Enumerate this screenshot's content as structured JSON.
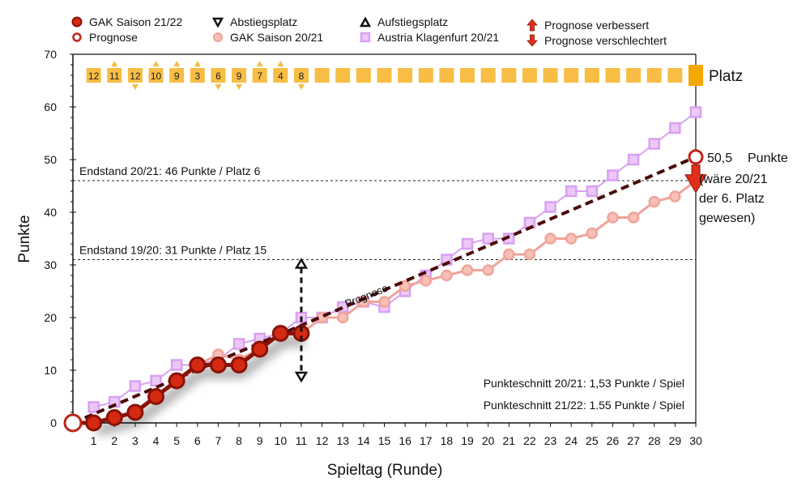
{
  "legend": [
    {
      "label": "GAK Saison 21/22",
      "icon": "filled-red-circle"
    },
    {
      "label": "Prognose",
      "icon": "hollow-red-circle"
    },
    {
      "label": "Abstiegsplatz",
      "icon": "down-triangle"
    },
    {
      "label": "GAK Saison 20/21",
      "icon": "light-red-circle"
    },
    {
      "label": "Aufstiegsplatz",
      "icon": "up-triangle"
    },
    {
      "label": "Austria Klagenfurt 20/21",
      "icon": "violet-square"
    },
    {
      "label": "Prognose verbessert",
      "icon": "red-up-arrow"
    },
    {
      "label": "Prognose verschlechtert",
      "icon": "red-down-arrow"
    }
  ],
  "colors": {
    "gak2122": "#d42a12",
    "gak2122_edge": "#8a1206",
    "gak2021": "#f0a49a",
    "klagenfurt": "#d9a0f0",
    "prognose_line": "#4a0a0a",
    "platz": "#f7bd45",
    "platz_current": "#f5a800",
    "arrow_red": "#e0301a"
  },
  "chart_data": {
    "type": "line",
    "xlabel": "Spieltag (Runde)",
    "ylabel": "Punkte",
    "xlim": [
      0,
      30
    ],
    "ylim": [
      0,
      70
    ],
    "x_ticks": [
      1,
      2,
      3,
      4,
      5,
      6,
      7,
      8,
      9,
      10,
      11,
      12,
      13,
      14,
      15,
      16,
      17,
      18,
      19,
      20,
      21,
      22,
      23,
      24,
      25,
      26,
      27,
      28,
      29,
      30
    ],
    "y_ticks": [
      0,
      10,
      20,
      30,
      40,
      50,
      60,
      70
    ],
    "series": [
      {
        "name": "Austria Klagenfurt 20/21",
        "x": [
          1,
          2,
          3,
          4,
          5,
          6,
          7,
          8,
          9,
          10,
          11,
          12,
          13,
          14,
          15,
          16,
          17,
          18,
          19,
          20,
          21,
          22,
          23,
          24,
          25,
          26,
          27,
          28,
          29,
          30
        ],
        "values": [
          3,
          4,
          7,
          8,
          11,
          11,
          12,
          15,
          16,
          17,
          20,
          20,
          22,
          23,
          22,
          25,
          28,
          31,
          34,
          35,
          35,
          38,
          41,
          44,
          44,
          47,
          50,
          53,
          56,
          59
        ]
      },
      {
        "name": "GAK Saison 20/21",
        "x": [
          1,
          2,
          3,
          4,
          5,
          6,
          7,
          8,
          9,
          10,
          11,
          12,
          13,
          14,
          15,
          16,
          17,
          18,
          19,
          20,
          21,
          22,
          23,
          24,
          25,
          26,
          27,
          28,
          29,
          30
        ],
        "values": [
          0,
          1,
          2,
          5,
          8,
          11,
          13,
          12,
          14,
          17,
          17,
          20,
          20,
          23,
          23,
          26,
          27,
          28,
          29,
          29,
          32,
          32,
          35,
          35,
          36,
          39,
          39,
          42,
          43,
          46
        ]
      },
      {
        "name": "GAK Saison 21/22",
        "x": [
          1,
          2,
          3,
          4,
          5,
          6,
          7,
          8,
          9,
          10,
          11
        ],
        "values": [
          0,
          1,
          2,
          5,
          8,
          11,
          11,
          11,
          14,
          17,
          17
        ]
      },
      {
        "name": "Prognose",
        "x": [
          0,
          30
        ],
        "values": [
          0,
          50.5
        ]
      }
    ],
    "reference_lines": [
      {
        "y": 46,
        "label": "Endstand 20/21: 46 Punkte / Platz 6"
      },
      {
        "y": 31,
        "label": "Endstand 19/20: 31 Punkte / Platz 15"
      }
    ],
    "platz": {
      "label": "Platz",
      "values": [
        "12",
        "11",
        "12",
        "10",
        "9",
        "3",
        "6",
        "9",
        "7",
        "4",
        "8"
      ],
      "trend": [
        "",
        "up",
        "down",
        "up",
        "up",
        "up",
        "down",
        "down",
        "up",
        "up",
        "down"
      ],
      "empty_rounds": 19
    },
    "range_marker": {
      "x": 11,
      "top": 31,
      "bottom": 8
    },
    "prognose_label": "Prognose",
    "end_annotation": {
      "value": "50,5",
      "unit": "Punkte",
      "lines": [
        "(wäre 20/21",
        "der 6. Platz",
        "gewesen)"
      ]
    },
    "stats": [
      "Punkteschnitt 20/21: 1,53 Punkte / Spiel",
      "Punkteschnitt 21/22: 1.55 Punkte / Spiel"
    ]
  }
}
